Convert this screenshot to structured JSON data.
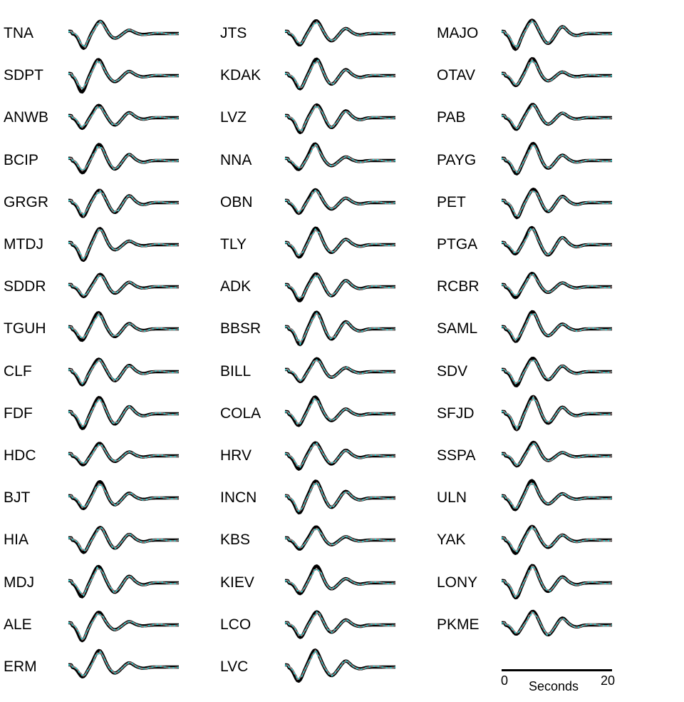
{
  "stations": {
    "col1": [
      "TNA",
      "SDPT",
      "ANWB",
      "BCIP",
      "GRGR",
      "MTDJ",
      "SDDR",
      "TGUH",
      "CLF",
      "FDF",
      "HDC",
      "BJT",
      "HIA",
      "MDJ",
      "ALE",
      "ERM"
    ],
    "col2": [
      "JTS",
      "KDAK",
      "LVZ",
      "NNA",
      "OBN",
      "TLY",
      "ADK",
      "BBSR",
      "BILL",
      "COLA",
      "HRV",
      "INCN",
      "KBS",
      "KIEV",
      "LCO",
      "LVC"
    ],
    "col3": [
      "MAJO",
      "OTAV",
      "PAB",
      "PAYG",
      "PET",
      "PTGA",
      "RCBR",
      "SAML",
      "SDV",
      "SFJD",
      "SSPA",
      "ULN",
      "YAK",
      "LONY",
      "PKME"
    ]
  },
  "trace_colors": {
    "observed": "#000000",
    "synthetic_red": "#e00000",
    "synthetic_cyan": "#22d3d3",
    "synthetic_grey": "#888888"
  },
  "scale_bar": {
    "start": "0",
    "end": "20",
    "unit": "Seconds"
  }
}
